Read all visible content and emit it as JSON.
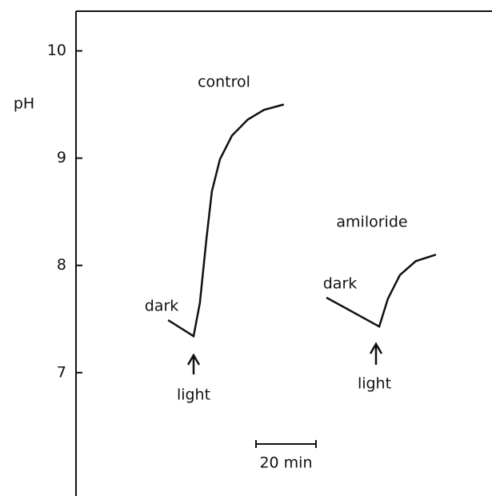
{
  "chart_data": {
    "type": "line",
    "y_label": "pH",
    "ylim": [
      5.85,
      10.37
    ],
    "yticks": [
      7,
      8,
      9,
      10
    ],
    "xlim": [
      0,
      138.7
    ],
    "color": "#111111",
    "series": [
      {
        "name": "control",
        "x": [
          30.7,
          39.2,
          41.3,
          43.5,
          45.3,
          48.0,
          52.0,
          57.3,
          62.7,
          69.3
        ],
        "values": [
          7.49,
          7.34,
          7.65,
          8.25,
          8.69,
          8.99,
          9.21,
          9.36,
          9.45,
          9.5
        ]
      },
      {
        "name": "amiloride",
        "x": [
          83.5,
          101.1,
          104.0,
          108.0,
          113.3,
          120.0
        ],
        "values": [
          7.7,
          7.43,
          7.69,
          7.91,
          8.04,
          8.1
        ]
      }
    ],
    "annotations": [
      "dark",
      "light",
      "dark",
      "light"
    ],
    "scale_bar": {
      "value": 20,
      "label": "20 min"
    }
  }
}
